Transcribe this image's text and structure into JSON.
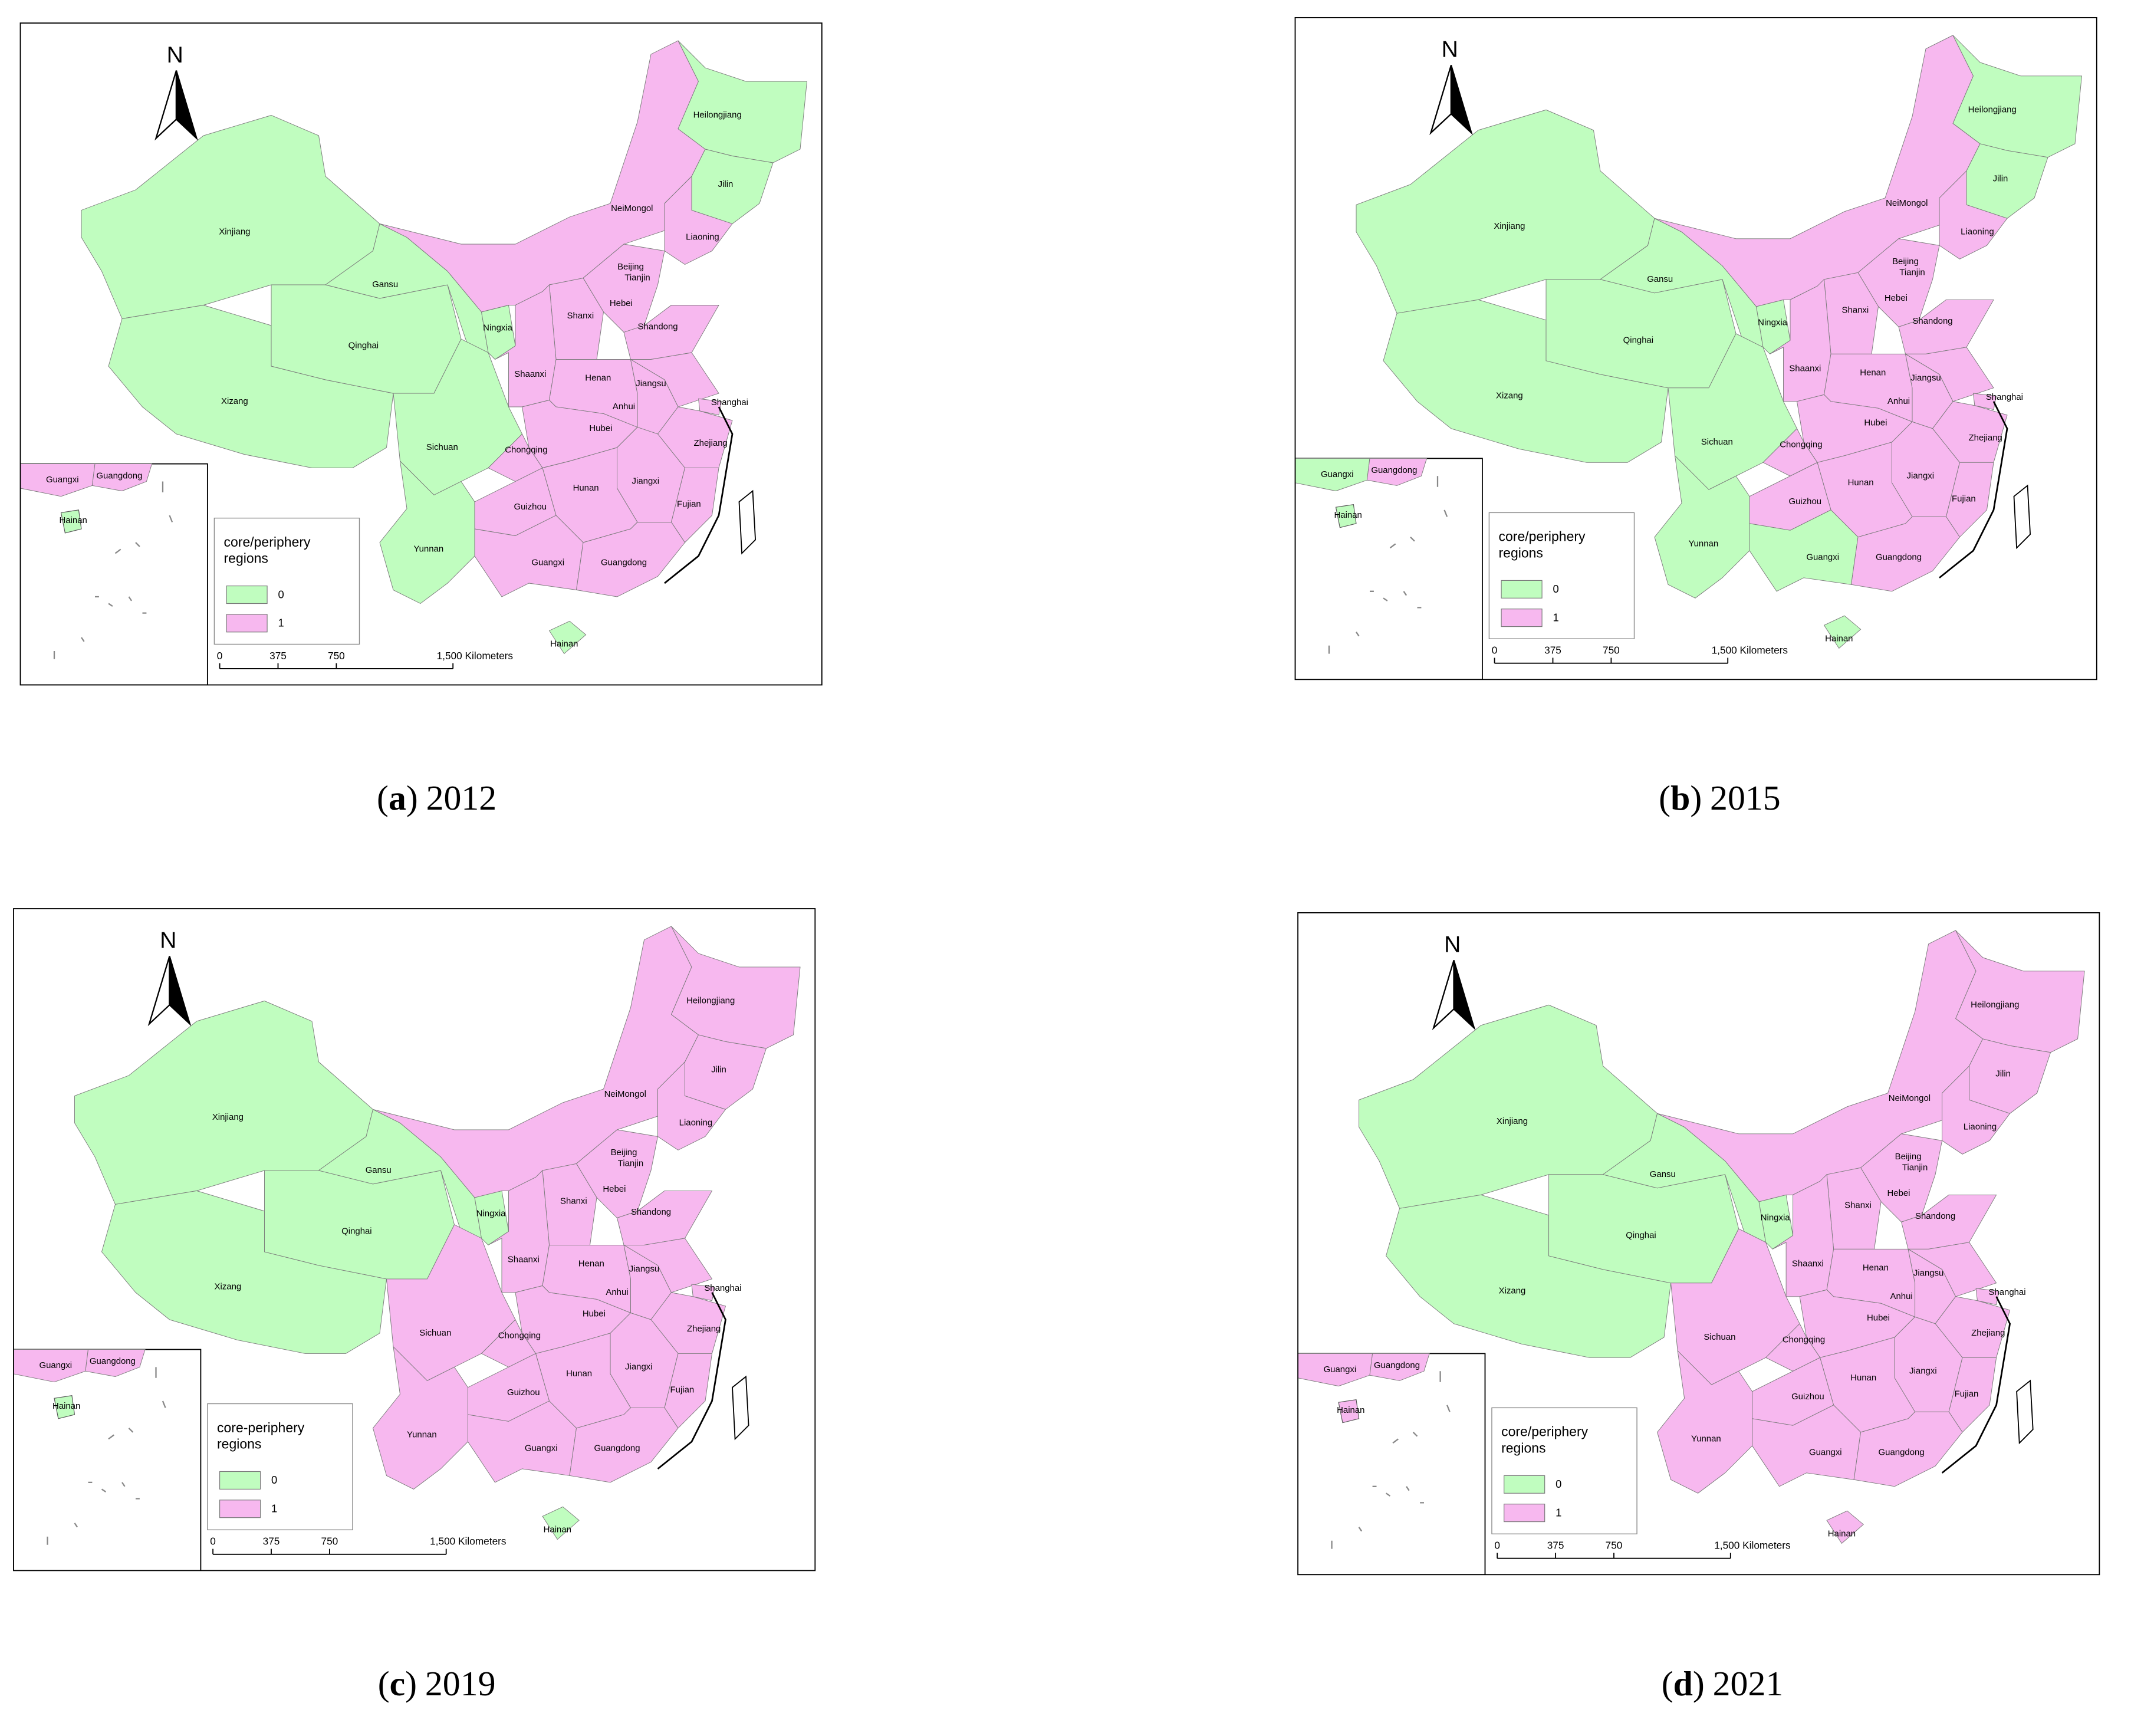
{
  "region_names": [
    "Xinjiang",
    "Xizang",
    "Qinghai",
    "Gansu",
    "Ningxia",
    "Sichuan",
    "Yunnan",
    "NeiMongol",
    "Heilongjiang",
    "Jilin",
    "Liaoning",
    "Beijing",
    "Tianjin",
    "Hebei",
    "Shanxi",
    "Shandong",
    "Shaanxi",
    "Henan",
    "Jiangsu",
    "Anhui",
    "Shanghai",
    "Hubei",
    "Chongqing",
    "Zhejiang",
    "Jiangxi",
    "Hunan",
    "Fujian",
    "Guizhou",
    "Guangxi",
    "Guangdong",
    "Hainan"
  ],
  "colors": [
    "#c0fdbf",
    "#f7b8ef"
  ],
  "caption_brackets": [
    "(",
    ")"
  ],
  "panels": [
    {
      "label": "a",
      "year": "2012",
      "north": "N",
      "legend_title": [
        "core/periphery",
        "regions"
      ],
      "legend_labels": [
        0,
        1
      ],
      "scale_ticks": [
        0,
        375,
        750,
        {
          "value": 1500,
          "label": "1,500 Kilometers"
        }
      ],
      "classes": [
        0,
        0,
        0,
        0,
        0,
        0,
        0,
        1,
        0,
        0,
        1,
        1,
        1,
        1,
        1,
        1,
        1,
        1,
        1,
        1,
        1,
        1,
        1,
        1,
        1,
        1,
        1,
        1,
        1,
        1,
        0
      ]
    },
    {
      "label": "b",
      "year": "2015",
      "north": "N",
      "legend_title": [
        "core/periphery",
        "regions"
      ],
      "legend_labels": [
        0,
        1
      ],
      "scale_ticks": [
        0,
        375,
        750,
        {
          "value": 1500,
          "label": "1,500 Kilometers"
        }
      ],
      "classes": [
        0,
        0,
        0,
        0,
        0,
        0,
        0,
        1,
        0,
        0,
        1,
        1,
        1,
        1,
        1,
        1,
        1,
        1,
        1,
        1,
        1,
        1,
        1,
        1,
        1,
        1,
        1,
        1,
        0,
        1,
        0
      ]
    },
    {
      "label": "c",
      "year": "2019",
      "north": "N",
      "legend_title": [
        "core-periphery",
        "regions"
      ],
      "legend_labels": [
        0,
        1
      ],
      "scale_ticks": [
        0,
        375,
        750,
        {
          "value": 1500,
          "label": "1,500 Kilometers"
        }
      ],
      "classes": [
        0,
        0,
        0,
        0,
        0,
        1,
        1,
        1,
        1,
        1,
        1,
        1,
        1,
        1,
        1,
        1,
        1,
        1,
        1,
        1,
        1,
        1,
        1,
        1,
        1,
        1,
        1,
        1,
        1,
        1,
        0
      ]
    },
    {
      "label": "d",
      "year": "2021",
      "north": "N",
      "legend_title": [
        "core/periphery",
        "regions"
      ],
      "legend_labels": [
        0,
        1
      ],
      "scale_ticks": [
        0,
        375,
        750,
        {
          "value": 1500,
          "label": "1,500 Kilometers"
        }
      ],
      "classes": [
        0,
        0,
        0,
        0,
        0,
        1,
        1,
        1,
        1,
        1,
        1,
        1,
        1,
        1,
        1,
        1,
        1,
        1,
        1,
        1,
        1,
        1,
        1,
        1,
        1,
        1,
        1,
        1,
        1,
        1,
        1
      ]
    }
  ]
}
